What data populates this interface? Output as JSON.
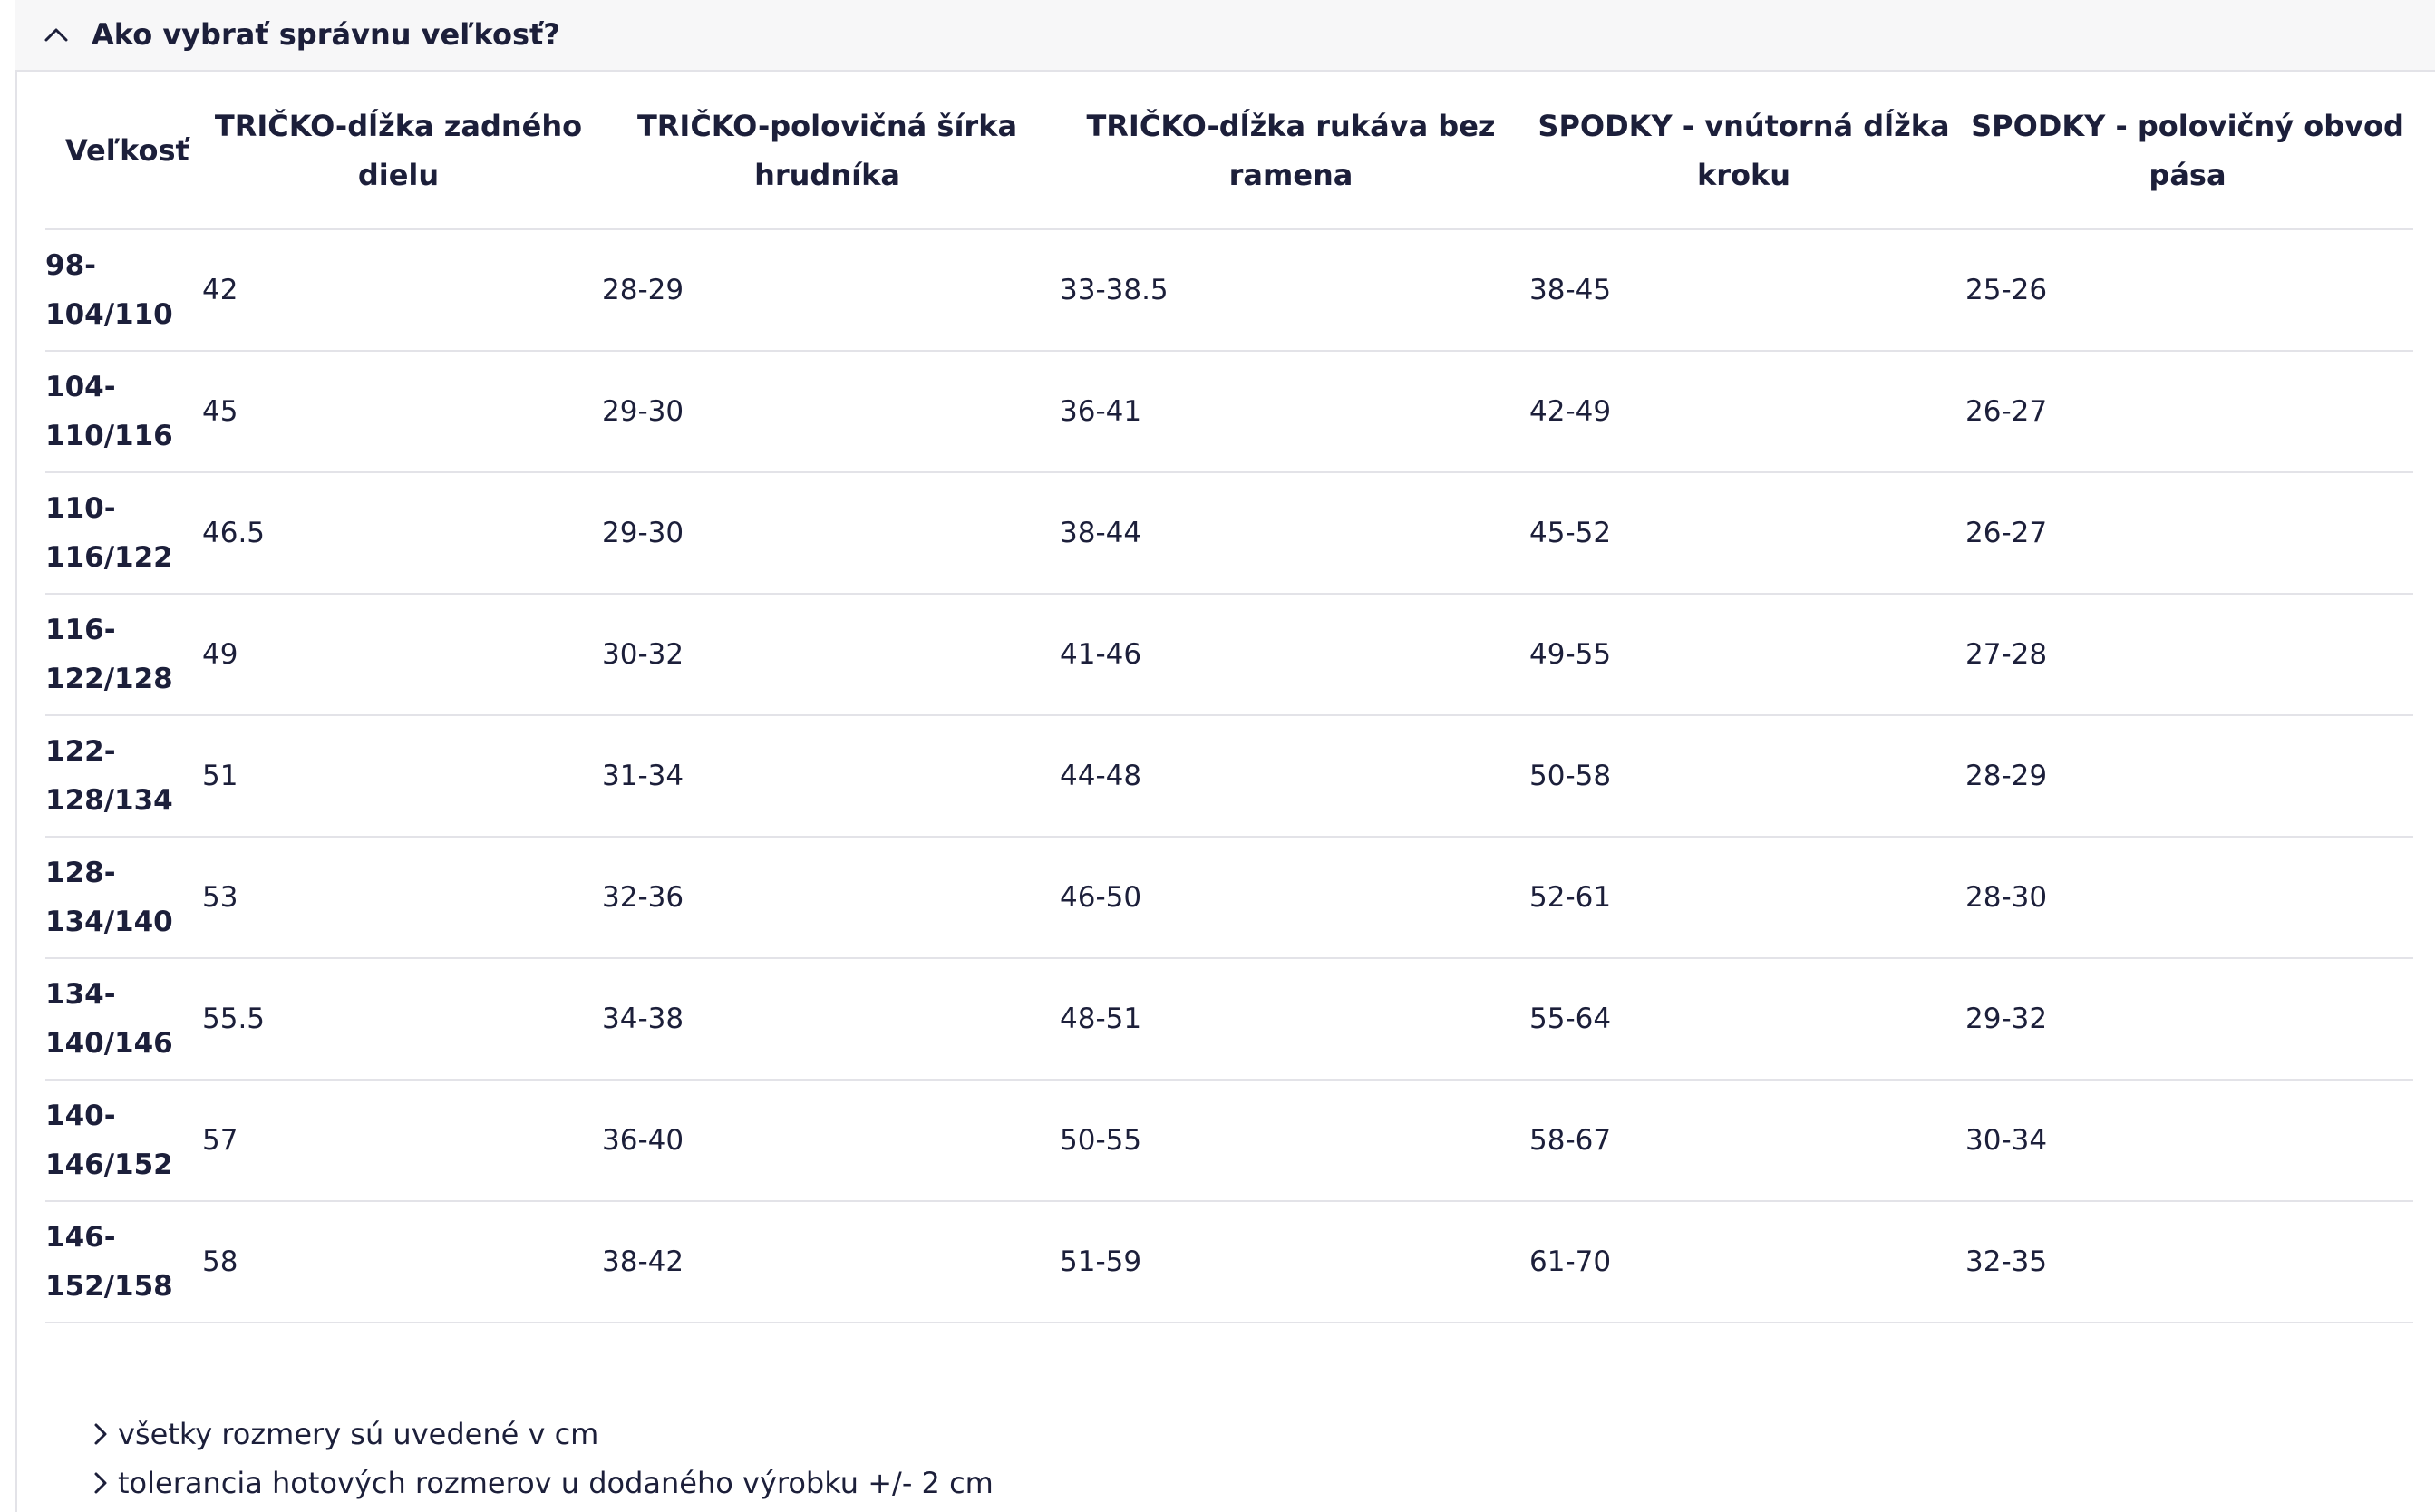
{
  "accordion": {
    "title": "Ako vybrať správnu veľkosť?",
    "icon": "chevron-up-icon"
  },
  "table": {
    "headers": [
      "Veľkosť",
      "TRIČKO-dĺžka zadného dielu",
      "TRIČKO-polovičná šírka hrudníka",
      "TRIČKO-dĺžka rukáva bez ramena",
      "SPODKY - vnútorná dĺžka kroku",
      "SPODKY - polovičný obvod pása"
    ],
    "rows": [
      [
        "98-104/110",
        "42",
        "28-29",
        "33-38.5",
        "38-45",
        "25-26"
      ],
      [
        "104-110/116",
        "45",
        "29-30",
        "36-41",
        "42-49",
        "26-27"
      ],
      [
        "110-116/122",
        "46.5",
        "29-30",
        "38-44",
        "45-52",
        "26-27"
      ],
      [
        "116-122/128",
        "49",
        "30-32",
        "41-46",
        "49-55",
        "27-28"
      ],
      [
        "122-128/134",
        "51",
        "31-34",
        "44-48",
        "50-58",
        "28-29"
      ],
      [
        "128-134/140",
        "53",
        "32-36",
        "46-50",
        "52-61",
        "28-30"
      ],
      [
        "134-140/146",
        "55.5",
        "34-38",
        "48-51",
        "55-64",
        "29-32"
      ],
      [
        "140-146/152",
        "57",
        "36-40",
        "50-55",
        "58-67",
        "30-34"
      ],
      [
        "146-152/158",
        "58",
        "38-42",
        "51-59",
        "61-70",
        "32-35"
      ]
    ]
  },
  "notes": [
    "všetky rozmery sú uvedené v cm",
    "tolerancia hotových rozmerov u dodaného výrobku +/- 2 cm"
  ],
  "colors": {
    "text": "#1c1f3a",
    "divider": "#e3e3e8",
    "header_bg": "#f7f7f8"
  }
}
